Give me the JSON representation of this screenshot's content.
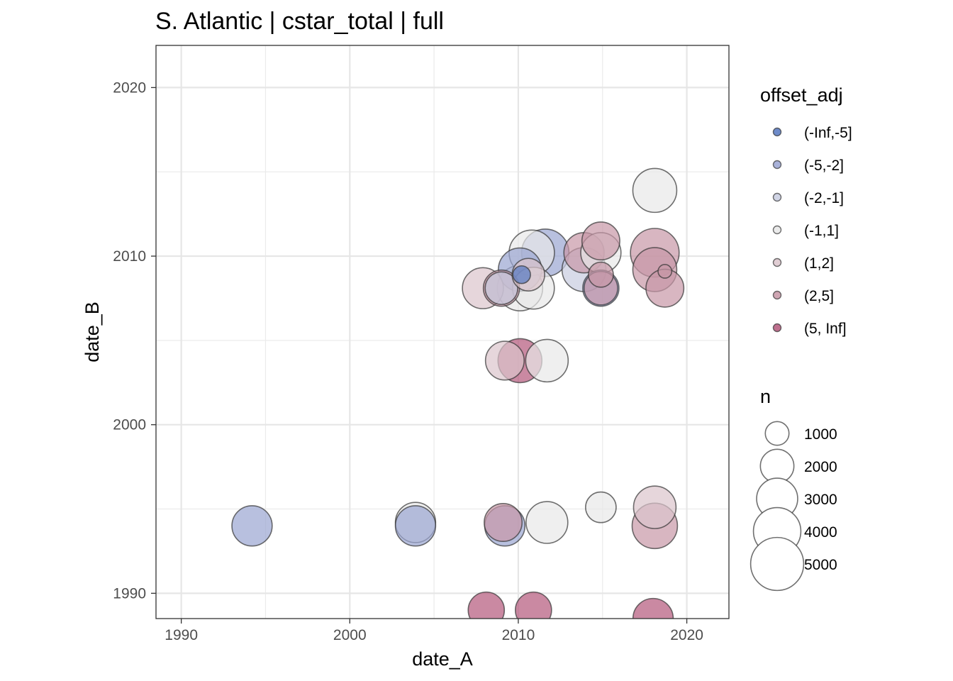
{
  "chart_data": {
    "type": "scatter",
    "title": "S. Atlantic | cstar_total | full",
    "xlabel": "date_A",
    "ylabel": "date_B",
    "xlim": [
      1988.5,
      2022.5
    ],
    "ylim": [
      1988.5,
      2022.5
    ],
    "x_ticks": [
      1990,
      2000,
      2010,
      2020
    ],
    "y_ticks": [
      1990,
      2000,
      2010,
      2020
    ],
    "grid": true,
    "legend": {
      "color_title": "offset_adj",
      "color_entries": [
        {
          "label": "(-Inf,-5]",
          "color": "#5577c0"
        },
        {
          "label": "(-5,-2]",
          "color": "#9aa5d2"
        },
        {
          "label": "(-2,-1]",
          "color": "#c8cce0"
        },
        {
          "label": "(-1,1]",
          "color": "#e8e8e8"
        },
        {
          "label": "(1,2]",
          "color": "#dcc5cc"
        },
        {
          "label": "(2,5]",
          "color": "#c797a6"
        },
        {
          "label": "(5, Inf]",
          "color": "#b3577a"
        }
      ],
      "size_title": "n",
      "size_entries": [
        1000,
        2000,
        3000,
        4000,
        5000
      ],
      "placement": "right"
    },
    "points": [
      {
        "x": 1994.2,
        "y": 1994.0,
        "n": 2600,
        "offset": "(-5,-2]"
      },
      {
        "x": 2003.9,
        "y": 1994.2,
        "n": 2600,
        "offset": "(-1,1]"
      },
      {
        "x": 2003.9,
        "y": 1994.0,
        "n": 2600,
        "offset": "(-5,-2]"
      },
      {
        "x": 2009.1,
        "y": 1994.2,
        "n": 2300,
        "offset": "(2,5]"
      },
      {
        "x": 2009.2,
        "y": 1994.0,
        "n": 2600,
        "offset": "(-5,-2]"
      },
      {
        "x": 2011.7,
        "y": 1994.2,
        "n": 2800,
        "offset": "(-1,1]"
      },
      {
        "x": 2014.9,
        "y": 1995.1,
        "n": 1500,
        "offset": "(-1,1]"
      },
      {
        "x": 2018.1,
        "y": 1995.1,
        "n": 2900,
        "offset": "(1,2]"
      },
      {
        "x": 2018.1,
        "y": 1994.0,
        "n": 3300,
        "offset": "(2,5]"
      },
      {
        "x": 2008.1,
        "y": 1989.0,
        "n": 2100,
        "offset": "(5, Inf]"
      },
      {
        "x": 2010.9,
        "y": 1989.0,
        "n": 2100,
        "offset": "(5, Inf]"
      },
      {
        "x": 2018.0,
        "y": 1988.5,
        "n": 2600,
        "offset": "(5, Inf]"
      },
      {
        "x": 2009.2,
        "y": 2003.8,
        "n": 2400,
        "offset": "(1,2]"
      },
      {
        "x": 2010.1,
        "y": 2003.8,
        "n": 3100,
        "offset": "(5, Inf]"
      },
      {
        "x": 2011.7,
        "y": 2003.8,
        "n": 2900,
        "offset": "(-1,1]"
      },
      {
        "x": 2007.9,
        "y": 2008.1,
        "n": 2700,
        "offset": "(1,2]"
      },
      {
        "x": 2009.0,
        "y": 2008.1,
        "n": 2100,
        "offset": "(2,5]"
      },
      {
        "x": 2009.0,
        "y": 2008.1,
        "n": 1700,
        "offset": "(-2,-1]"
      },
      {
        "x": 2010.1,
        "y": 2008.1,
        "n": 3300,
        "offset": "(-1,1]"
      },
      {
        "x": 2010.9,
        "y": 2008.1,
        "n": 2800,
        "offset": "(-1,1]"
      },
      {
        "x": 2010.6,
        "y": 2008.9,
        "n": 1700,
        "offset": "(1,2]"
      },
      {
        "x": 2010.1,
        "y": 2009.2,
        "n": 3000,
        "offset": "(-5,-2]"
      },
      {
        "x": 2010.2,
        "y": 2008.9,
        "n": 500,
        "offset": "(-Inf,-5]"
      },
      {
        "x": 2010.8,
        "y": 2010.2,
        "n": 3300,
        "offset": "(-1,1]"
      },
      {
        "x": 2011.6,
        "y": 2010.2,
        "n": 3600,
        "offset": "(-5,-2]"
      },
      {
        "x": 2013.9,
        "y": 2009.2,
        "n": 3100,
        "offset": "(-2,-1]"
      },
      {
        "x": 2013.9,
        "y": 2010.2,
        "n": 2600,
        "offset": "(2,5]"
      },
      {
        "x": 2014.9,
        "y": 2010.9,
        "n": 2300,
        "offset": "(2,5]"
      },
      {
        "x": 2014.9,
        "y": 2010.2,
        "n": 2600,
        "offset": "(-1,1]"
      },
      {
        "x": 2014.9,
        "y": 2008.9,
        "n": 1000,
        "offset": "(2,5]"
      },
      {
        "x": 2014.9,
        "y": 2008.1,
        "n": 2100,
        "offset": "(-5,-2]"
      },
      {
        "x": 2014.9,
        "y": 2008.1,
        "n": 1800,
        "offset": "(2,5]"
      },
      {
        "x": 2018.1,
        "y": 2013.9,
        "n": 3100,
        "offset": "(-1,1]"
      },
      {
        "x": 2018.1,
        "y": 2010.2,
        "n": 3800,
        "offset": "(2,5]"
      },
      {
        "x": 2018.1,
        "y": 2009.2,
        "n": 3100,
        "offset": "(2,5]"
      },
      {
        "x": 2018.7,
        "y": 2009.1,
        "n": 300,
        "offset": "(2,5]"
      },
      {
        "x": 2018.7,
        "y": 2008.1,
        "n": 2300,
        "offset": "(2,5]"
      }
    ]
  }
}
